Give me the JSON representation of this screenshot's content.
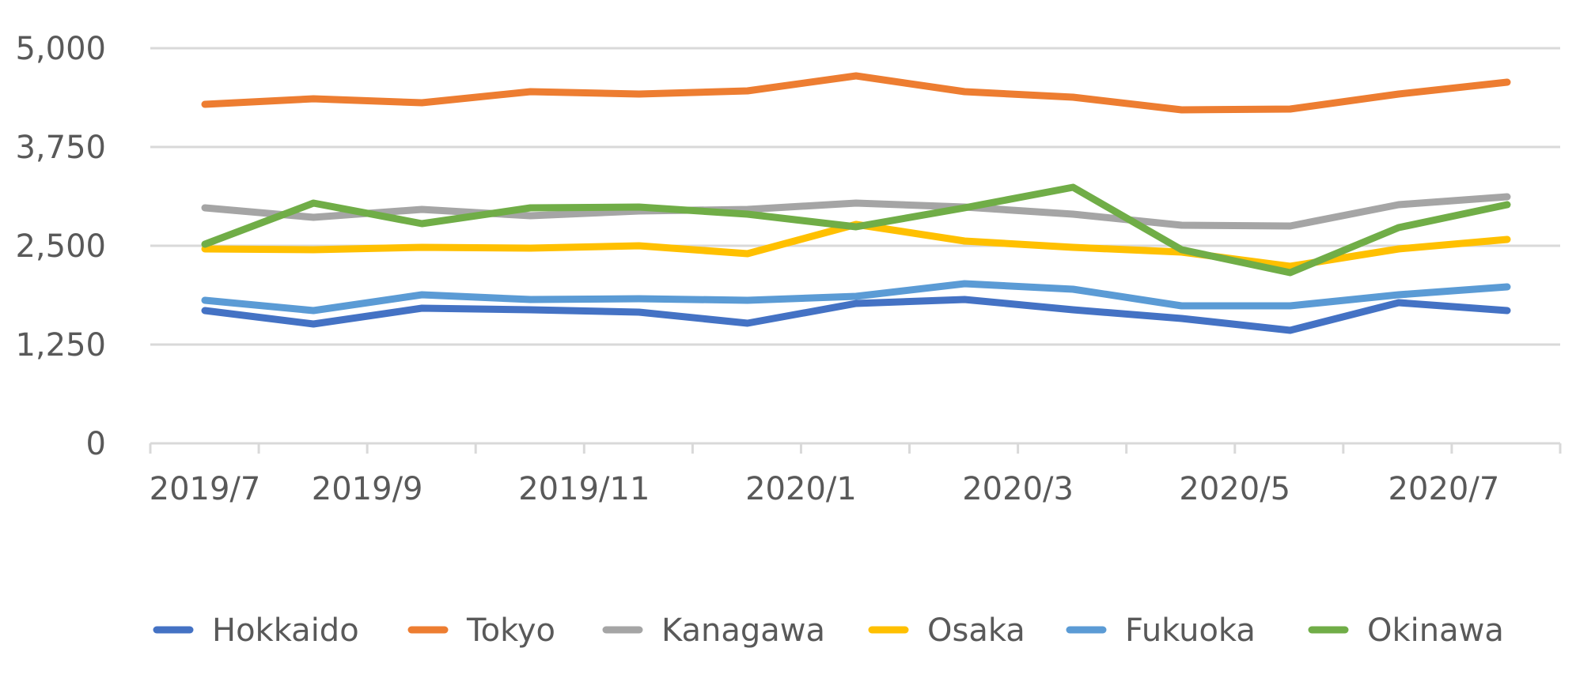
{
  "chart_data": {
    "type": "line",
    "title": "",
    "xlabel": "",
    "ylabel": "",
    "x": [
      "2019/7",
      "2019/8",
      "2019/9",
      "2019/10",
      "2019/11",
      "2019/12",
      "2020/1",
      "2020/2",
      "2020/3",
      "2020/4",
      "2020/5",
      "2020/6",
      "2020/7"
    ],
    "x_tick_labels": [
      "2019/7",
      "2019/9",
      "2019/11",
      "2020/1",
      "2020/3",
      "2020/5",
      "2020/7"
    ],
    "y_ticks": [
      0,
      1250,
      2500,
      3750,
      5000
    ],
    "y_tick_labels": [
      "0",
      "1,250",
      "2,500",
      "3,750",
      "5,000"
    ],
    "ylim": [
      0,
      5000
    ],
    "grid": true,
    "legend_position": "bottom",
    "series": [
      {
        "name": "Hokkaido",
        "color": "#4472C4",
        "values": [
          1680,
          1510,
          1710,
          1690,
          1660,
          1520,
          1770,
          1820,
          1690,
          1580,
          1430,
          1780,
          1680
        ]
      },
      {
        "name": "Tokyo",
        "color": "#ED7D31",
        "values": [
          4290,
          4360,
          4310,
          4450,
          4420,
          4460,
          4650,
          4450,
          4380,
          4220,
          4230,
          4420,
          4570
        ]
      },
      {
        "name": "Kanagawa",
        "color": "#A5A5A5",
        "values": [
          2980,
          2860,
          2960,
          2880,
          2940,
          2960,
          3040,
          2990,
          2900,
          2760,
          2750,
          3020,
          3120
        ]
      },
      {
        "name": "Osaka",
        "color": "#FFC000",
        "values": [
          2460,
          2450,
          2480,
          2470,
          2500,
          2400,
          2770,
          2560,
          2480,
          2420,
          2240,
          2460,
          2580
        ]
      },
      {
        "name": "Fukuoka",
        "color": "#5B9BD5",
        "values": [
          1810,
          1680,
          1880,
          1820,
          1830,
          1810,
          1860,
          2020,
          1950,
          1740,
          1740,
          1880,
          1980
        ]
      },
      {
        "name": "Okinawa",
        "color": "#70AD47",
        "values": [
          2520,
          3040,
          2780,
          2980,
          2990,
          2900,
          2740,
          2980,
          3240,
          2450,
          2160,
          2730,
          3020
        ]
      }
    ]
  }
}
